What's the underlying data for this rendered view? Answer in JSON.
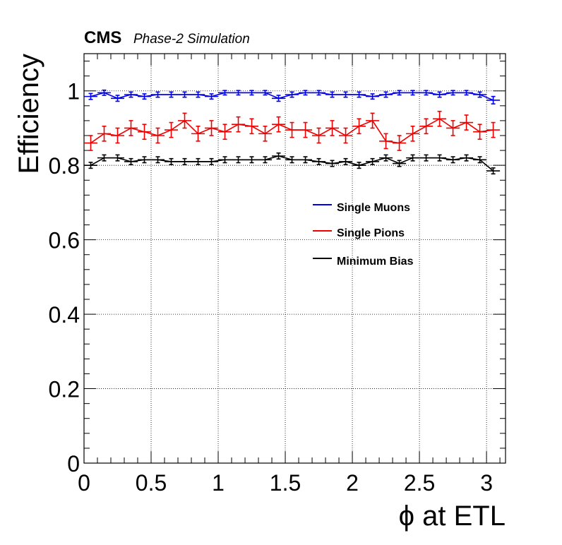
{
  "header": {
    "experiment": "CMS",
    "status": "Phase-2 Simulation"
  },
  "chart_data": {
    "type": "line",
    "title": "",
    "xlabel": "ϕ at ETL",
    "ylabel": "Efficiency",
    "xlim": [
      0,
      3.1416
    ],
    "ylim": [
      0,
      1.1
    ],
    "xticks": [
      "0",
      "0.5",
      "1",
      "1.5",
      "2",
      "2.5",
      "3"
    ],
    "yticks": [
      "0",
      "0.2",
      "0.4",
      "0.6",
      "0.8",
      "1"
    ],
    "grid": true,
    "legend_placement": "center-right",
    "x": [
      0.05,
      0.15,
      0.25,
      0.35,
      0.45,
      0.55,
      0.65,
      0.75,
      0.85,
      0.95,
      1.05,
      1.15,
      1.25,
      1.35,
      1.45,
      1.55,
      1.65,
      1.75,
      1.85,
      1.95,
      2.05,
      2.15,
      2.25,
      2.35,
      2.45,
      2.55,
      2.65,
      2.75,
      2.85,
      2.95,
      3.05
    ],
    "series": [
      {
        "name": "Single Muons",
        "color": "#0000ee",
        "values": [
          0.985,
          0.995,
          0.98,
          0.99,
          0.985,
          0.99,
          0.99,
          0.99,
          0.99,
          0.985,
          0.995,
          0.995,
          0.995,
          0.995,
          0.98,
          0.99,
          0.995,
          0.995,
          0.99,
          0.99,
          0.99,
          0.985,
          0.99,
          0.995,
          0.995,
          0.995,
          0.99,
          0.995,
          0.995,
          0.99,
          0.975
        ],
        "errors": [
          0.008,
          0.007,
          0.008,
          0.007,
          0.007,
          0.007,
          0.007,
          0.007,
          0.007,
          0.007,
          0.006,
          0.006,
          0.006,
          0.006,
          0.008,
          0.007,
          0.006,
          0.006,
          0.007,
          0.007,
          0.007,
          0.007,
          0.007,
          0.006,
          0.006,
          0.006,
          0.007,
          0.006,
          0.006,
          0.007,
          0.01
        ]
      },
      {
        "name": "Single Pions",
        "color": "#ee0000",
        "values": [
          0.86,
          0.885,
          0.88,
          0.9,
          0.89,
          0.88,
          0.895,
          0.92,
          0.885,
          0.9,
          0.89,
          0.91,
          0.905,
          0.885,
          0.91,
          0.895,
          0.895,
          0.88,
          0.9,
          0.88,
          0.905,
          0.92,
          0.865,
          0.86,
          0.885,
          0.905,
          0.925,
          0.9,
          0.915,
          0.89,
          0.895
        ],
        "errors": [
          0.02,
          0.02,
          0.02,
          0.02,
          0.02,
          0.02,
          0.02,
          0.02,
          0.02,
          0.02,
          0.02,
          0.02,
          0.02,
          0.02,
          0.02,
          0.02,
          0.02,
          0.02,
          0.02,
          0.02,
          0.02,
          0.02,
          0.02,
          0.02,
          0.02,
          0.02,
          0.02,
          0.02,
          0.02,
          0.02,
          0.02
        ]
      },
      {
        "name": "Minimum Bias",
        "color": "#000000",
        "values": [
          0.8,
          0.82,
          0.82,
          0.81,
          0.815,
          0.815,
          0.81,
          0.81,
          0.81,
          0.81,
          0.815,
          0.815,
          0.815,
          0.815,
          0.825,
          0.815,
          0.815,
          0.81,
          0.805,
          0.81,
          0.8,
          0.81,
          0.82,
          0.805,
          0.82,
          0.82,
          0.82,
          0.815,
          0.82,
          0.815,
          0.785
        ],
        "errors": [
          0.008,
          0.008,
          0.008,
          0.008,
          0.008,
          0.008,
          0.008,
          0.008,
          0.008,
          0.008,
          0.008,
          0.008,
          0.008,
          0.008,
          0.008,
          0.008,
          0.008,
          0.008,
          0.008,
          0.008,
          0.008,
          0.008,
          0.008,
          0.008,
          0.008,
          0.008,
          0.008,
          0.008,
          0.008,
          0.008,
          0.008
        ]
      }
    ]
  }
}
